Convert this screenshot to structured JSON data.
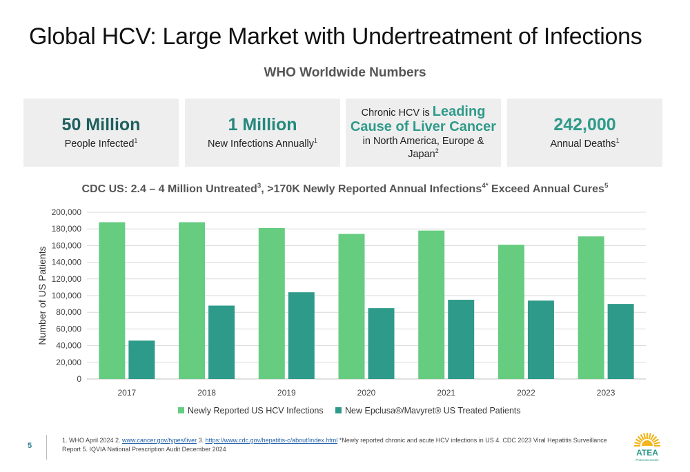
{
  "slide": {
    "title": "Global HCV: Large Market with Undertreatment of Infections",
    "section_title": "WHO Worldwide Numbers",
    "page_number": "5"
  },
  "stats": {
    "infected": {
      "value": "50 Million",
      "label": "People Infected",
      "sup": "1"
    },
    "new_infections": {
      "value": "1 Million",
      "label": "New Infections Annually",
      "sup": "1"
    },
    "cancer": {
      "prefix": "Chronic HCV is ",
      "highlight1": "Leading",
      "highlight2": "Cause of Liver Cancer",
      "suffix": "in North America, Europe &",
      "suffix2": "Japan",
      "sup": "2"
    },
    "deaths": {
      "value": "242,000",
      "label": "Annual Deaths",
      "sup": "1"
    }
  },
  "chart_title": {
    "part1": "CDC US:  2.4 – 4 Million Untreated",
    "sup1": "3",
    "part2": ", >170K Newly Reported Annual Infections",
    "sup2": "4*",
    "part3": " Exceed Annual Cures",
    "sup3": "5"
  },
  "chart_data": {
    "type": "bar",
    "categories": [
      "2017",
      "2018",
      "2019",
      "2020",
      "2021",
      "2022",
      "2023"
    ],
    "series": [
      {
        "name": "Newly Reported US HCV Infections",
        "color": "#66cc80",
        "values": [
          188000,
          188000,
          181000,
          174000,
          178000,
          161000,
          171000
        ]
      },
      {
        "name": "New Epclusa®/Mavyret® US Treated Patients",
        "color": "#2e9a8a",
        "values": [
          46000,
          88000,
          104000,
          85000,
          95000,
          94000,
          90000
        ]
      }
    ],
    "ylabel": "Number of US Patients",
    "xlabel": "",
    "ylim": [
      0,
      200000
    ],
    "yticks": [
      0,
      20000,
      40000,
      60000,
      80000,
      100000,
      120000,
      140000,
      160000,
      180000,
      200000
    ],
    "ytick_labels": [
      "0",
      "20,000",
      "40,000",
      "60,000",
      "80,000",
      "100,000",
      "120,000",
      "140,000",
      "160,000",
      "180,000",
      "200,000"
    ],
    "grid": true,
    "legend_position": "bottom"
  },
  "footnotes": {
    "text1": "1. WHO April 2024  2. ",
    "link1": "www.cancer.gov/types/liver",
    "text2": "  3. ",
    "link2": "https://www.cdc.gov/hepatitis-c/about/index.html",
    "text3": " *Newly reported chronic and acute HCV infections in US  4.  CDC 2023 Viral Hepatitis Surveillance Report  5. IQVIA National Prescription Audit December 2024"
  },
  "logo": {
    "text": "ATEA",
    "subtext": "Pharmaceuticals",
    "icon": "sun-icon",
    "color_yellow": "#f2b51c",
    "color_teal": "#2e9a8a"
  }
}
